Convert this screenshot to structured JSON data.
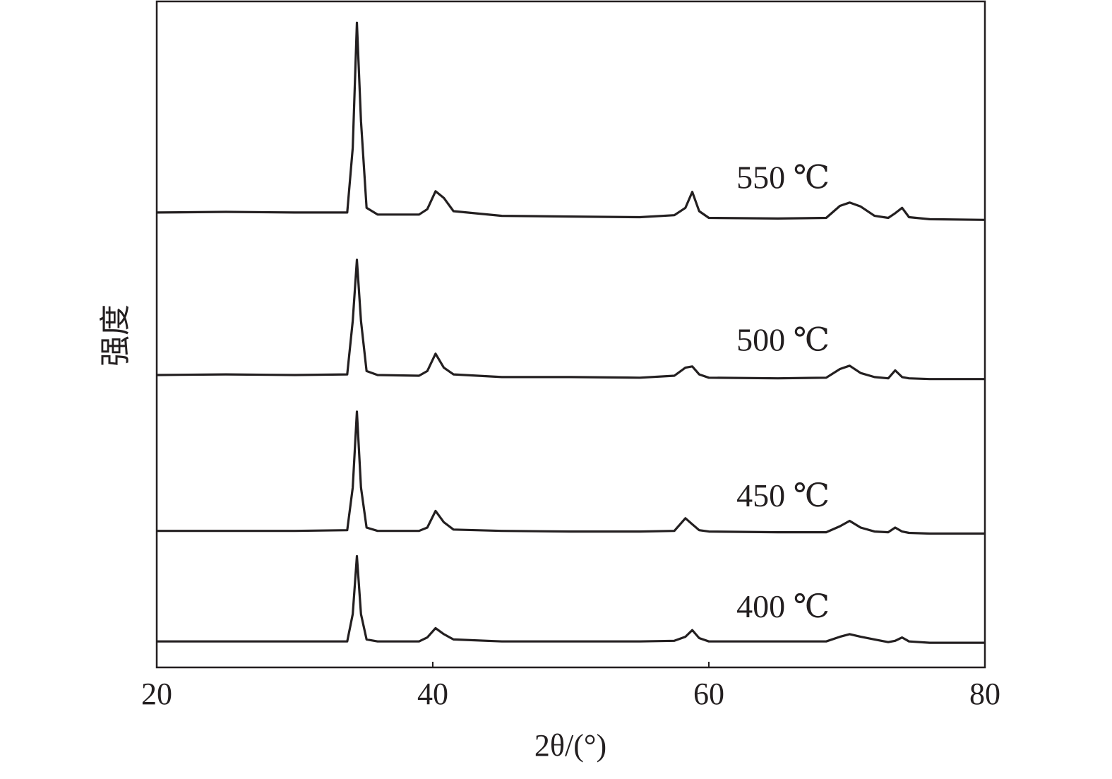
{
  "chart_data": {
    "type": "line",
    "x_label": "2θ/(°)",
    "y_label": "强度",
    "xlim": [
      20,
      80
    ],
    "xticks": [
      20,
      40,
      60,
      80
    ],
    "ylim": [
      0,
      100
    ],
    "x": [
      20,
      25,
      30,
      33.8,
      34.2,
      34.5,
      34.8,
      35.2,
      36,
      39,
      39.6,
      40.2,
      40.8,
      41.5,
      45,
      50,
      55,
      57.5,
      58.3,
      58.8,
      59.3,
      60,
      65,
      68.5,
      69.5,
      70.2,
      71,
      72,
      73,
      73.5,
      74,
      74.5,
      76,
      80
    ],
    "series": [
      {
        "name": "400 ℃",
        "color": "#231f20",
        "values": [
          3.9,
          3.9,
          3.9,
          3.9,
          8,
          16.7,
          8,
          4.2,
          3.9,
          3.9,
          4.5,
          5.9,
          5,
          4.2,
          3.9,
          3.9,
          3.9,
          4.0,
          4.6,
          5.6,
          4.4,
          3.9,
          3.9,
          3.9,
          4.6,
          5.0,
          4.6,
          4.2,
          3.8,
          4.0,
          4.5,
          3.9,
          3.7,
          3.7
        ]
      },
      {
        "name": "450 ℃",
        "color": "#231f20",
        "values": [
          20.5,
          20.5,
          20.5,
          20.6,
          27,
          38.4,
          27,
          21,
          20.5,
          20.5,
          21,
          23.5,
          21.8,
          20.7,
          20.5,
          20.4,
          20.4,
          20.5,
          22.4,
          21.5,
          20.6,
          20.4,
          20.3,
          20.3,
          21.2,
          22.0,
          21,
          20.4,
          20.3,
          21.0,
          20.4,
          20.2,
          20.1,
          20.1
        ]
      },
      {
        "name": "500 ℃",
        "color": "#231f20",
        "values": [
          43.9,
          44.0,
          43.9,
          44,
          52,
          61.2,
          52,
          44.5,
          43.9,
          43.8,
          44.5,
          47.1,
          45,
          44,
          43.6,
          43.6,
          43.5,
          43.8,
          45.0,
          45.2,
          44.0,
          43.5,
          43.4,
          43.5,
          44.8,
          45.3,
          44.2,
          43.6,
          43.4,
          44.6,
          43.6,
          43.4,
          43.3,
          43.3
        ]
      },
      {
        "name": "550 ℃",
        "color": "#231f20",
        "values": [
          68.3,
          68.4,
          68.3,
          68.3,
          78,
          96.8,
          82,
          69,
          68.0,
          68.0,
          68.8,
          71.5,
          70.5,
          68.5,
          67.8,
          67.7,
          67.6,
          67.9,
          69,
          71.4,
          68.5,
          67.5,
          67.4,
          67.5,
          69.3,
          69.8,
          69.2,
          67.8,
          67.5,
          68.2,
          69.0,
          67.6,
          67.3,
          67.2
        ]
      }
    ]
  }
}
